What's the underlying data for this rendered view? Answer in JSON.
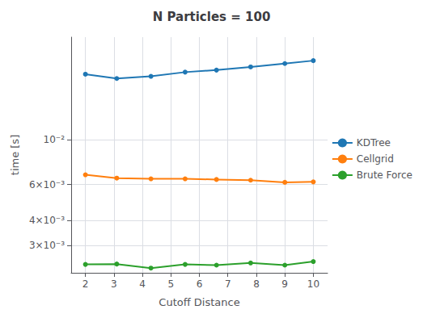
{
  "chart_data": {
    "type": "line",
    "title": "N Particles = 100",
    "xlabel": "Cutoff Distance",
    "ylabel": "time [s]",
    "x": [
      2,
      3.1,
      4.3,
      5.5,
      6.6,
      7.8,
      9.0,
      10.0
    ],
    "series": [
      {
        "name": "KDTree",
        "color": "#1f77b4",
        "marker": "circle",
        "values": [
          0.021,
          0.02,
          0.0205,
          0.0215,
          0.022,
          0.0228,
          0.0237,
          0.0245
        ]
      },
      {
        "name": "Cellgrid",
        "color": "#ff7f0e",
        "marker": "circle",
        "values": [
          0.0067,
          0.00645,
          0.0064,
          0.0064,
          0.00635,
          0.0063,
          0.00615,
          0.00618
        ]
      },
      {
        "name": "Brute Force",
        "color": "#2ca02c",
        "marker": "circle",
        "values": [
          0.00242,
          0.00243,
          0.00232,
          0.00242,
          0.0024,
          0.00246,
          0.0024,
          0.0025
        ]
      }
    ],
    "xlim": [
      1.5,
      10.5
    ],
    "xticks": [
      2,
      3,
      4,
      5,
      6,
      7,
      8,
      9,
      10
    ],
    "ylim": [
      0.0022,
      0.032
    ],
    "yticks": [
      {
        "value": 0.003,
        "label": "3×10⁻³"
      },
      {
        "value": 0.004,
        "label": "4×10⁻³"
      },
      {
        "value": 0.006,
        "label": "6×10⁻³"
      },
      {
        "value": 0.01,
        "label": "10⁻²"
      }
    ],
    "log": "y",
    "grid": true,
    "legend": "right"
  }
}
